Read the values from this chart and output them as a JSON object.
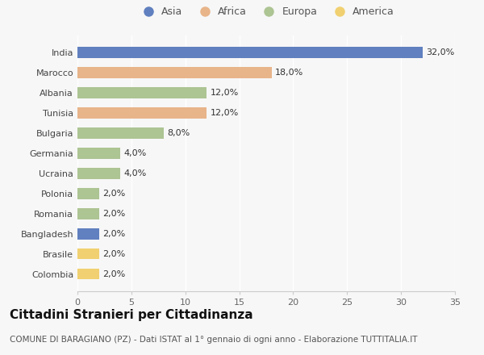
{
  "countries": [
    "India",
    "Marocco",
    "Albania",
    "Tunisia",
    "Bulgaria",
    "Germania",
    "Ucraina",
    "Polonia",
    "Romania",
    "Bangladesh",
    "Brasile",
    "Colombia"
  ],
  "values": [
    32.0,
    18.0,
    12.0,
    12.0,
    8.0,
    4.0,
    4.0,
    2.0,
    2.0,
    2.0,
    2.0,
    2.0
  ],
  "continents": [
    "Asia",
    "Africa",
    "Europa",
    "Africa",
    "Europa",
    "Europa",
    "Europa",
    "Europa",
    "Europa",
    "Asia",
    "America",
    "America"
  ],
  "continent_colors": {
    "Asia": "#6080bf",
    "Africa": "#e8b48a",
    "Europa": "#adc493",
    "America": "#f0d070"
  },
  "legend_order": [
    "Asia",
    "Africa",
    "Europa",
    "America"
  ],
  "xlim": [
    0,
    35
  ],
  "xticks": [
    0,
    5,
    10,
    15,
    20,
    25,
    30,
    35
  ],
  "title": "Cittadini Stranieri per Cittadinanza",
  "subtitle": "COMUNE DI BARAGIANO (PZ) - Dati ISTAT al 1° gennaio di ogni anno - Elaborazione TUTTITALIA.IT",
  "background_color": "#f7f7f7",
  "bar_height": 0.55,
  "title_fontsize": 11,
  "subtitle_fontsize": 7.5,
  "label_fontsize": 8,
  "tick_fontsize": 8,
  "legend_fontsize": 9
}
